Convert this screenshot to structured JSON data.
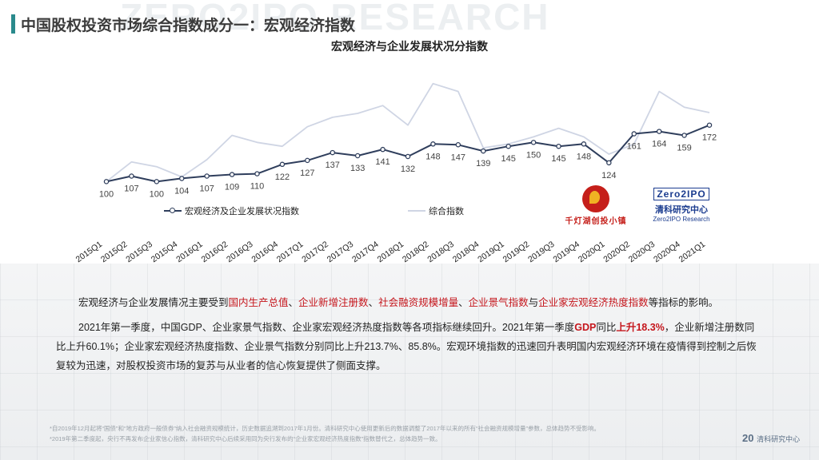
{
  "watermark": "ZERO2IPO RESEARCH",
  "page_title": "中国股权投资市场综合指数成分一：宏观经济指数",
  "chart_data": {
    "type": "line",
    "title": "宏观经济与企业发展状况分指数",
    "categories": [
      "2015Q1",
      "2015Q2",
      "2015Q3",
      "2015Q4",
      "2016Q1",
      "2016Q2",
      "2016Q3",
      "2016Q4",
      "2017Q1",
      "2017Q2",
      "2017Q3",
      "2017Q4",
      "2018Q1",
      "2018Q2",
      "2018Q3",
      "2018Q4",
      "2019Q1",
      "2019Q2",
      "2019Q3",
      "2019Q4",
      "2020Q1",
      "2020Q2",
      "2020Q3",
      "2020Q4",
      "2021Q1"
    ],
    "series": [
      {
        "name": "宏观经济及企业发展状况指数",
        "color": "#2f3e5c",
        "labeled": true,
        "values": [
          100,
          107,
          100,
          104,
          107,
          109,
          110,
          122,
          127,
          137,
          133,
          141,
          132,
          148,
          147,
          139,
          145,
          150,
          145,
          148,
          124,
          161,
          164,
          159,
          172
        ]
      },
      {
        "name": "综合指数",
        "color": "#cfd5e4",
        "labeled": false,
        "values": [
          100,
          125,
          119,
          106,
          128,
          159,
          150,
          145,
          170,
          182,
          187,
          197,
          172,
          225,
          215,
          143,
          148,
          157,
          168,
          157,
          135,
          148,
          215,
          195,
          188
        ]
      }
    ],
    "ylim": [
      80,
      240
    ],
    "legend": "bottom-left"
  },
  "logos": {
    "logo1_name": "千灯湖创投小镇",
    "logo2_top": "Zero2IPO",
    "logo2_cn": "清科研究中心",
    "logo2_en": "Zero2IPO Research"
  },
  "text": {
    "p1_a": "宏观经济与企业发展情况主要受到",
    "p1_h1": "国内生产总值",
    "p1_s1": "、",
    "p1_h2": "企业新增注册数",
    "p1_s2": "、",
    "p1_h3": "社会融资规模增量",
    "p1_s3": "、",
    "p1_h4": "企业景气指数",
    "p1_s4": "与",
    "p1_h5": "企业家宏观经济热度指数",
    "p1_b": "等指标的影响。",
    "p2_a": "2021年第一季度，中国GDP、企业家景气指数、企业家宏观经济热度指数等各项指标继续回升。2021年第一季度",
    "p2_h1": "GDP",
    "p2_b": "同比",
    "p2_h2": "上升18.3%",
    "p2_c": "，企业新增注册数同比上升60.1%；企业家宏观经济热度指数、企业景气指数分别同比上升213.7%、85.8%。宏观环境指数的迅速回升表明国内宏观经济环境在疫情得到控制之后恢复较为迅速，对股权投资市场的复苏与从业者的信心恢复提供了侧面支撑。"
  },
  "footnote": {
    "line1": "*自2019年12月起将“国债”和“地方政府一般债券”纳入社会融资规模统计，历史数据追溯到2017年1月份。清科研究中心使用更新后的数据调整了2017年以来的所有“社会融资规模增量”参数，总体趋势不受影响。",
    "line2": "*2019年第二季度起，央行不再发布企业家信心指数，清科研究中心后续采用同为央行发布的“企业家宏观经济热度指数”指数替代之，总体趋势一致。"
  },
  "footer": {
    "brand": "20",
    "name": "清科研究中心"
  }
}
